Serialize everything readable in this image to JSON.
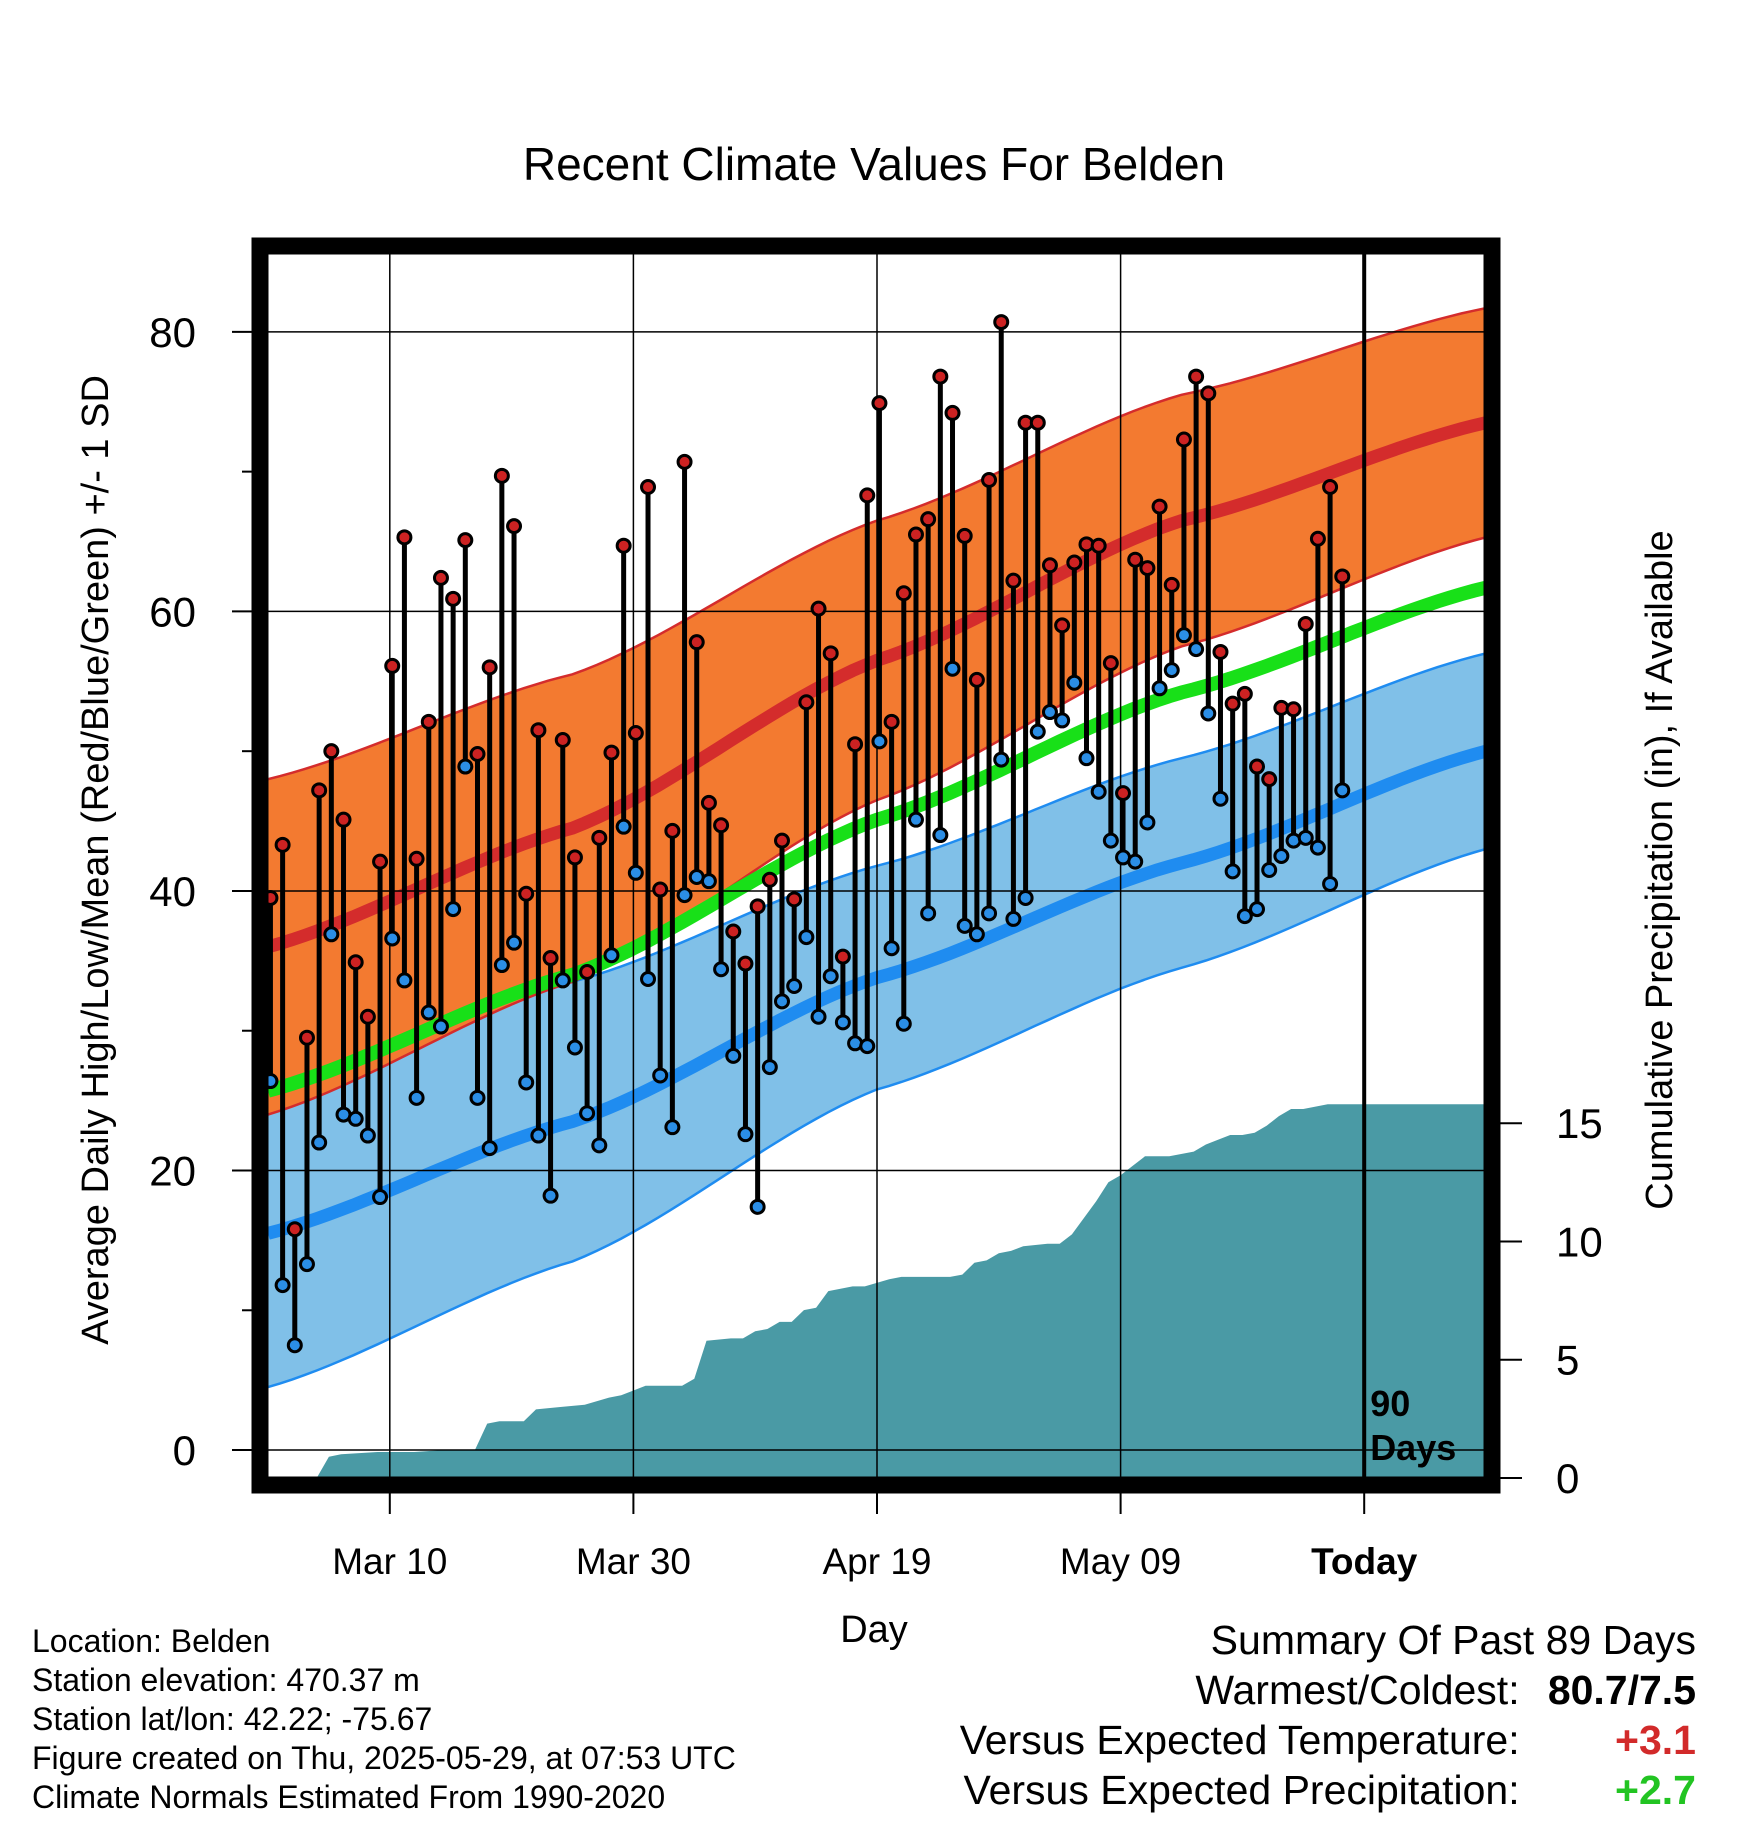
{
  "chart_data": {
    "type": "line",
    "title": "Recent Climate Values For Belden",
    "xlabel": "Day",
    "ylabel": "Average Daily High/Low/Mean (Red/Blue/Green) +/- 1 SD",
    "y2label": "Cumulative Precipitation (in), If Available",
    "x_tick_labels": [
      "Mar 10",
      "Mar 30",
      "Apr 19",
      "May 09",
      "Today"
    ],
    "x_tick_days": [
      10,
      30,
      50,
      70,
      90
    ],
    "y_ticks": [
      0,
      20,
      40,
      60,
      80
    ],
    "y2_ticks": [
      0,
      5,
      10,
      15
    ],
    "ylim": [
      -2,
      86
    ],
    "y2lim": [
      0,
      52
    ],
    "xlim": [
      0,
      100
    ],
    "today_day": 90,
    "today_label": [
      "90",
      "Days"
    ],
    "grid": true,
    "colors": {
      "high_band": "#f37a30",
      "high_line": "#d42c2c",
      "low_band": "#80c0e8",
      "low_line": "#1f8cf0",
      "mean_line": "#18e018",
      "precip": "#4a9aa5",
      "high_dot": "#cc2222",
      "low_dot": "#2b8ee6"
    },
    "normal_days": [
      0,
      25,
      50,
      75,
      100
    ],
    "normal_high": [
      36.0,
      44.5,
      56.5,
      66.5,
      73.5
    ],
    "normal_high_sd": [
      12.0,
      11.0,
      10.0,
      9.0,
      8.2
    ],
    "normal_low": [
      15.5,
      23.5,
      33.8,
      42.0,
      50.0
    ],
    "normal_low_sd": [
      11.0,
      10.0,
      8.0,
      7.5,
      7.0
    ],
    "normal_mean": [
      25.7,
      34.0,
      45.1,
      54.2,
      61.7
    ],
    "daily_high": [
      39.5,
      43.3,
      15.8,
      29.5,
      47.2,
      50.0,
      45.1,
      34.9,
      31.0,
      42.1,
      56.1,
      65.3,
      42.3,
      52.1,
      62.4,
      60.9,
      65.1,
      49.8,
      56.0,
      69.7,
      66.1,
      39.8,
      51.5,
      35.2,
      50.8,
      42.4,
      34.2,
      43.8,
      49.9,
      64.7,
      51.3,
      68.9,
      40.1,
      44.3,
      70.7,
      57.8,
      46.3,
      44.7,
      37.1,
      34.8,
      38.9,
      40.8,
      43.6,
      39.4,
      53.5,
      60.2,
      57.0,
      35.3,
      50.5,
      68.3,
      74.9,
      52.1,
      61.3,
      65.5,
      66.6,
      76.8,
      74.2,
      65.4,
      55.1,
      69.4,
      80.7,
      62.2,
      73.5,
      73.5,
      63.3,
      59.0,
      63.5,
      64.8,
      64.7,
      56.3,
      47.0,
      63.7,
      63.1,
      67.5,
      61.9,
      72.3,
      76.8,
      75.6,
      57.1,
      53.4,
      54.1,
      48.9,
      48.0,
      53.1,
      53.0,
      59.1,
      65.2,
      68.9,
      62.5
    ],
    "daily_low": [
      26.4,
      11.8,
      7.5,
      13.3,
      22.0,
      36.9,
      24.0,
      23.7,
      22.5,
      18.1,
      36.6,
      33.6,
      25.2,
      31.3,
      30.3,
      38.7,
      48.9,
      25.2,
      21.6,
      34.7,
      36.3,
      26.3,
      22.5,
      18.2,
      33.6,
      28.8,
      24.1,
      21.8,
      35.4,
      44.6,
      41.3,
      33.7,
      26.8,
      23.1,
      39.7,
      41.0,
      40.7,
      34.4,
      28.2,
      22.6,
      17.4,
      27.4,
      32.1,
      33.2,
      36.7,
      31.0,
      33.9,
      30.6,
      29.1,
      28.9,
      50.7,
      35.9,
      30.5,
      45.1,
      38.4,
      44.0,
      55.9,
      37.5,
      36.9,
      38.4,
      49.4,
      38.0,
      39.5,
      51.4,
      52.8,
      52.2,
      54.9,
      49.5,
      47.1,
      43.6,
      42.4,
      42.1,
      44.9,
      54.5,
      55.8,
      58.3,
      57.3,
      52.7,
      46.6,
      41.4,
      38.2,
      38.7,
      41.5,
      42.5,
      43.6,
      43.8,
      43.1,
      40.5,
      47.2
    ],
    "precip_days": [
      0,
      4,
      5,
      6,
      9,
      12,
      15,
      17,
      18,
      19,
      21,
      22,
      24,
      26,
      28,
      29,
      31,
      34,
      35,
      36,
      38,
      39,
      40,
      41,
      42,
      43,
      44,
      45,
      46,
      47,
      48,
      49,
      51,
      52,
      55,
      56,
      57,
      58,
      59,
      60,
      61,
      62,
      64,
      65,
      66,
      67,
      68,
      69,
      70,
      71,
      72,
      73,
      74,
      76,
      77,
      78,
      79,
      80,
      81,
      82,
      83,
      84,
      85,
      86,
      87,
      88,
      89,
      100
    ],
    "precip_values": [
      0,
      0,
      0.9,
      1.0,
      1.1,
      1.1,
      1.2,
      1.2,
      2.3,
      2.4,
      2.4,
      2.9,
      3.0,
      3.1,
      3.4,
      3.5,
      3.9,
      3.9,
      4.2,
      5.8,
      5.9,
      5.9,
      6.2,
      6.3,
      6.6,
      6.6,
      7.1,
      7.2,
      7.9,
      8.0,
      8.1,
      8.1,
      8.4,
      8.5,
      8.5,
      8.5,
      8.6,
      9.1,
      9.2,
      9.5,
      9.6,
      9.8,
      9.9,
      9.9,
      10.3,
      11.0,
      11.7,
      12.5,
      12.8,
      13.2,
      13.6,
      13.6,
      13.6,
      13.8,
      14.1,
      14.3,
      14.5,
      14.5,
      14.6,
      14.9,
      15.3,
      15.6,
      15.6,
      15.7,
      15.8,
      15.8,
      15.8,
      15.8
    ]
  },
  "footer_info": {
    "location": "Location: Belden",
    "elevation": "Station elevation: 470.37 m",
    "latlon": "Station lat/lon: 42.22; -75.67",
    "created": "Figure created on Thu, 2025-05-29, at 07:53 UTC",
    "normals": "Climate Normals Estimated From 1990-2020"
  },
  "summary": {
    "title": "Summary Of Past 89 Days",
    "warmest_label": "Warmest/Coldest:",
    "warmest_value": "80.7/7.5",
    "temp_label": "Versus Expected Temperature:",
    "temp_value": "+3.1",
    "precip_label": "Versus Expected Precipitation:",
    "precip_value": "+2.7"
  }
}
